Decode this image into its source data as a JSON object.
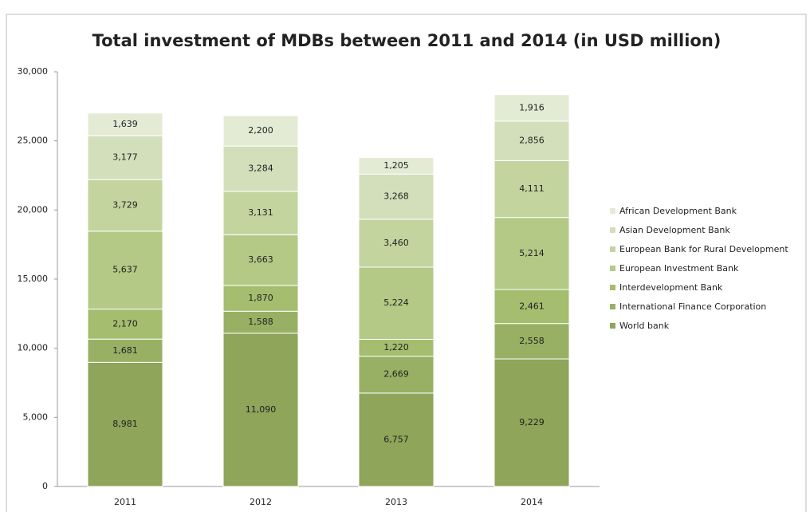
{
  "chart_data": {
    "type": "stacked_bar",
    "title": "Total investment of MDBs between 2011 and 2014 (in USD million)",
    "categories": [
      "2011",
      "2012",
      "2013",
      "2014"
    ],
    "series": [
      {
        "name": "World bank",
        "color": "#8ea55a",
        "values": [
          8981,
          11090,
          6757,
          9229
        ],
        "value_labels": [
          "8,981",
          "11,090",
          "6,757",
          "9,229"
        ]
      },
      {
        "name": "International Finance Corporation",
        "color": "#98b063",
        "values": [
          1681,
          1588,
          2669,
          2558
        ],
        "value_labels": [
          "1,681",
          "1,588",
          "2,669",
          "2,558"
        ]
      },
      {
        "name": "Interdevelopment Bank",
        "color": "#a4bd6e",
        "values": [
          2170,
          1870,
          1220,
          2461
        ],
        "value_labels": [
          "2,170",
          "1,870",
          "1,220",
          "2,461"
        ]
      },
      {
        "name": "European Investment Bank",
        "color": "#b3c985",
        "values": [
          5637,
          3663,
          5224,
          5214
        ],
        "value_labels": [
          "5,637",
          "3,663",
          "5,224",
          "5,214"
        ]
      },
      {
        "name": "European Bank for Rural Development",
        "color": "#c3d49f",
        "values": [
          3729,
          3131,
          3460,
          4111
        ],
        "value_labels": [
          "3,729",
          "3,131",
          "3,460",
          "4,111"
        ]
      },
      {
        "name": "Asian Development Bank",
        "color": "#d3dfbb",
        "values": [
          3177,
          3284,
          3268,
          2856
        ],
        "value_labels": [
          "3,177",
          "3,284",
          "3,268",
          "2,856"
        ]
      },
      {
        "name": "African Development Bank",
        "color": "#e4ebd5",
        "values": [
          1639,
          2200,
          1205,
          1916
        ],
        "value_labels": [
          "1,639",
          "2,200",
          "1,205",
          "1,916"
        ]
      }
    ],
    "ylim": [
      0,
      30000
    ],
    "yticks": [
      0,
      {
        "value": 5000,
        "label": "5,000"
      },
      {
        "value": 10000,
        "label": "10,000"
      },
      {
        "value": 15000,
        "label": "15,000"
      },
      {
        "value": 20000,
        "label": "20,000"
      },
      {
        "value": 25000,
        "label": "25,000"
      },
      {
        "value": 30000,
        "label": "30,000"
      }
    ],
    "legend": "right"
  }
}
